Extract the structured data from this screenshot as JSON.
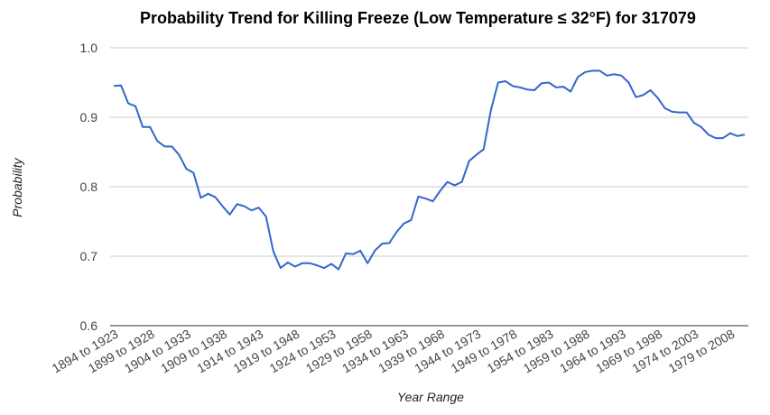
{
  "chart_data": {
    "type": "line",
    "title": "Probability Trend for Killing Freeze (Low Temperature ≤ 32°F) for 317079",
    "xlabel": "Year Range",
    "ylabel": "Probability",
    "ylim": [
      0.6,
      1.0
    ],
    "y_ticks": [
      "0.6",
      "0.7",
      "0.8",
      "0.9",
      "1.0"
    ],
    "grid": true,
    "legend": "none",
    "x_tick_labels": [
      "1894 to 1923",
      "1899 to 1928",
      "1904 to 1933",
      "1909 to 1938",
      "1914 to 1943",
      "1919 to 1948",
      "1924 to 1953",
      "1929 to 1958",
      "1934 to 1963",
      "1939 to 1968",
      "1944 to 1973",
      "1949 to 1978",
      "1954 to 1983",
      "1959 to 1988",
      "1964 to 1993",
      "1969 to 1998",
      "1974 to 2003",
      "1979 to 2008"
    ],
    "series": [
      {
        "color": "#3366cc",
        "values": [
          0.945,
          0.946,
          0.92,
          0.916,
          0.886,
          0.886,
          0.866,
          0.858,
          0.858,
          0.846,
          0.826,
          0.82,
          0.784,
          0.79,
          0.785,
          0.772,
          0.76,
          0.775,
          0.772,
          0.766,
          0.77,
          0.757,
          0.707,
          0.683,
          0.691,
          0.685,
          0.69,
          0.69,
          0.687,
          0.683,
          0.689,
          0.681,
          0.704,
          0.703,
          0.708,
          0.69,
          0.708,
          0.718,
          0.719,
          0.735,
          0.747,
          0.752,
          0.786,
          0.783,
          0.779,
          0.794,
          0.807,
          0.802,
          0.807,
          0.837,
          0.846,
          0.854,
          0.91,
          0.95,
          0.952,
          0.945,
          0.943,
          0.94,
          0.939,
          0.949,
          0.95,
          0.943,
          0.944,
          0.937,
          0.958,
          0.965,
          0.967,
          0.967,
          0.96,
          0.962,
          0.96,
          0.95,
          0.929,
          0.932,
          0.939,
          0.928,
          0.913,
          0.908,
          0.907,
          0.907,
          0.892,
          0.886,
          0.875,
          0.87,
          0.87,
          0.877,
          0.873,
          0.875
        ]
      }
    ]
  }
}
